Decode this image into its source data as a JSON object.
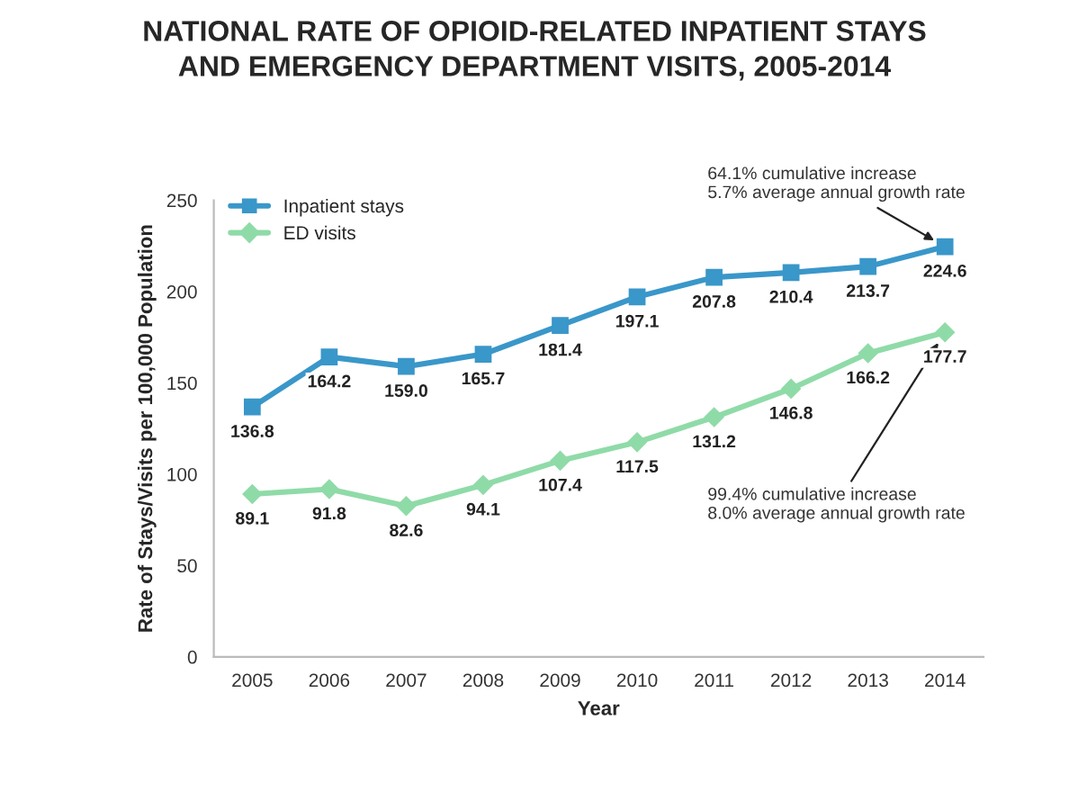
{
  "chart_data": {
    "type": "line",
    "title": "NATIONAL RATE OF OPIOID-RELATED INPATIENT STAYS\nAND EMERGENCY DEPARTMENT VISITS, 2005-2014",
    "xlabel": "Year",
    "ylabel": "Rate of Stays/Visits per 100,000 Population",
    "categories": [
      "2005",
      "2006",
      "2007",
      "2008",
      "2009",
      "2010",
      "2011",
      "2012",
      "2013",
      "2014"
    ],
    "series": [
      {
        "name": "Inpatient stays",
        "color": "#3a97c9",
        "marker": "square",
        "values": [
          136.8,
          164.2,
          159.0,
          165.7,
          181.4,
          197.1,
          207.8,
          210.4,
          213.7,
          224.6
        ],
        "value_labels": [
          "136.8",
          "164.2",
          "159.0",
          "165.7",
          "181.4",
          "197.1",
          "207.8",
          "210.4",
          "213.7",
          "224.6"
        ]
      },
      {
        "name": "ED visits",
        "color": "#8fdba8",
        "marker": "diamond",
        "values": [
          89.1,
          91.8,
          82.6,
          94.1,
          107.4,
          117.5,
          131.2,
          146.8,
          166.2,
          177.7
        ],
        "value_labels": [
          "89.1",
          "91.8",
          "82.6",
          "94.1",
          "107.4",
          "117.5",
          "131.2",
          "146.8",
          "166.2",
          "177.7"
        ]
      }
    ],
    "ylim": [
      0,
      250
    ],
    "yticks": [
      0,
      50,
      100,
      150,
      200,
      250
    ],
    "data_labels": true,
    "grid": false,
    "legend": "top left",
    "line_style": "solid",
    "annotations": [
      {
        "text": "64.1% cumulative increase\n5.7% average annual growth rate",
        "x": "2014",
        "y": 224.6
      },
      {
        "text": "99.4% cumulative increase\n8.0% average annual growth rate",
        "x": "2014",
        "y": 177.7
      }
    ]
  }
}
